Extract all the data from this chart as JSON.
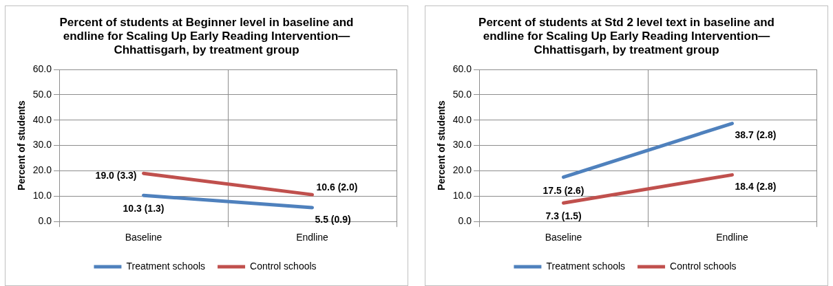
{
  "chart_data": [
    {
      "type": "line",
      "title": "Percent of students at Beginner level in baseline and endline for Scaling Up Early Reading Intervention—Chhattisgarh, by treatment group",
      "ylabel": "Percent of students",
      "categories": [
        "Baseline",
        "Endline"
      ],
      "series": [
        {
          "name": "Treatment schools",
          "color": "#4f81bd",
          "values": [
            10.3,
            5.5
          ],
          "value_labels": [
            "10.3 (1.3)",
            "5.5 (0.9)"
          ]
        },
        {
          "name": "Control schools",
          "color": "#c0504d",
          "values": [
            19.0,
            10.6
          ],
          "value_labels": [
            "19.0 (3.3)",
            "10.6 (2.0)"
          ]
        }
      ],
      "ylim": [
        0,
        60
      ],
      "yticks": [
        {
          "value": 0,
          "label": "0.0"
        },
        {
          "value": 10,
          "label": "10.0"
        },
        {
          "value": 20,
          "label": "20.0"
        },
        {
          "value": 30,
          "label": "30.0"
        },
        {
          "value": 40,
          "label": "40.0"
        },
        {
          "value": 50,
          "label": "50.0"
        },
        {
          "value": 60,
          "label": "60.0"
        }
      ],
      "grid": true,
      "legend": "bottom",
      "marker": "none",
      "line_style": "solid"
    },
    {
      "type": "line",
      "title": "Percent of students at Std 2 level text in baseline and endline for Scaling Up Early Reading Intervention—Chhattisgarh, by treatment group",
      "ylabel": "Percent of students",
      "categories": [
        "Baseline",
        "Endline"
      ],
      "series": [
        {
          "name": "Treatment schools",
          "color": "#4f81bd",
          "values": [
            17.5,
            38.7
          ],
          "value_labels": [
            "17.5 (2.6)",
            "38.7 (2.8)"
          ]
        },
        {
          "name": "Control schools",
          "color": "#c0504d",
          "values": [
            7.3,
            18.4
          ],
          "value_labels": [
            "7.3 (1.5)",
            "18.4 (2.8)"
          ]
        }
      ],
      "ylim": [
        0,
        60
      ],
      "yticks": [
        {
          "value": 0,
          "label": "0.0"
        },
        {
          "value": 10,
          "label": "10.0"
        },
        {
          "value": 20,
          "label": "20.0"
        },
        {
          "value": 30,
          "label": "30.0"
        },
        {
          "value": 40,
          "label": "40.0"
        },
        {
          "value": 50,
          "label": "50.0"
        },
        {
          "value": 60,
          "label": "60.0"
        }
      ],
      "grid": true,
      "legend": "bottom",
      "marker": "none",
      "line_style": "solid"
    }
  ]
}
